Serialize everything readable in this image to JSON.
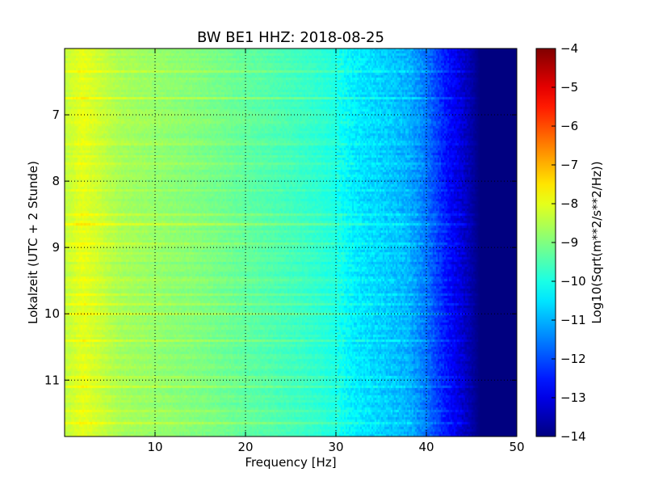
{
  "chart_data": {
    "type": "heatmap",
    "title": "BW BE1 HHZ: 2018-08-25",
    "xlabel": "Frequency [Hz]",
    "ylabel": "Lokalzeit (UTC + 2 Stunde)",
    "xlim": [
      0,
      50
    ],
    "ylim": [
      6.0,
      11.85
    ],
    "y_inverted": true,
    "x_ticks": [
      10,
      20,
      30,
      40,
      50
    ],
    "x_tick_labels": [
      "10",
      "20",
      "30",
      "40",
      "50"
    ],
    "y_ticks": [
      7,
      8,
      9,
      10,
      11
    ],
    "y_tick_labels": [
      "7",
      "8",
      "9",
      "10",
      "11"
    ],
    "grid": true,
    "colormap": "jet",
    "colorbar": {
      "label": "Log10(Sqrt(m**2/s**2/Hz))",
      "range": [
        -14,
        -4
      ],
      "ticks": [
        -4,
        -5,
        -6,
        -7,
        -8,
        -9,
        -10,
        -11,
        -12,
        -13,
        -14
      ],
      "tick_labels": [
        "−4",
        "−5",
        "−6",
        "−7",
        "−8",
        "−9",
        "−10",
        "−11",
        "−12",
        "−13",
        "−14"
      ]
    },
    "frequency_profile": {
      "frequency_hz": [
        0,
        2,
        4,
        6,
        10,
        15,
        20,
        25,
        28,
        30,
        32,
        35,
        38,
        40,
        42,
        44,
        45,
        46,
        50
      ],
      "log10_amplitude": [
        -8.4,
        -8.0,
        -8.3,
        -8.6,
        -8.8,
        -9.0,
        -9.3,
        -9.6,
        -9.8,
        -10.0,
        -10.4,
        -10.7,
        -11.0,
        -11.6,
        -12.5,
        -13.2,
        -13.6,
        -14.0,
        -14.0
      ]
    },
    "high_energy_times": [
      6.35,
      6.75,
      7.1,
      7.45,
      7.75,
      8.15,
      8.5,
      8.65,
      8.75,
      8.95,
      9.1,
      9.5,
      9.7,
      9.85,
      10.0,
      10.4,
      10.95,
      11.1,
      11.45,
      11.65
    ]
  }
}
